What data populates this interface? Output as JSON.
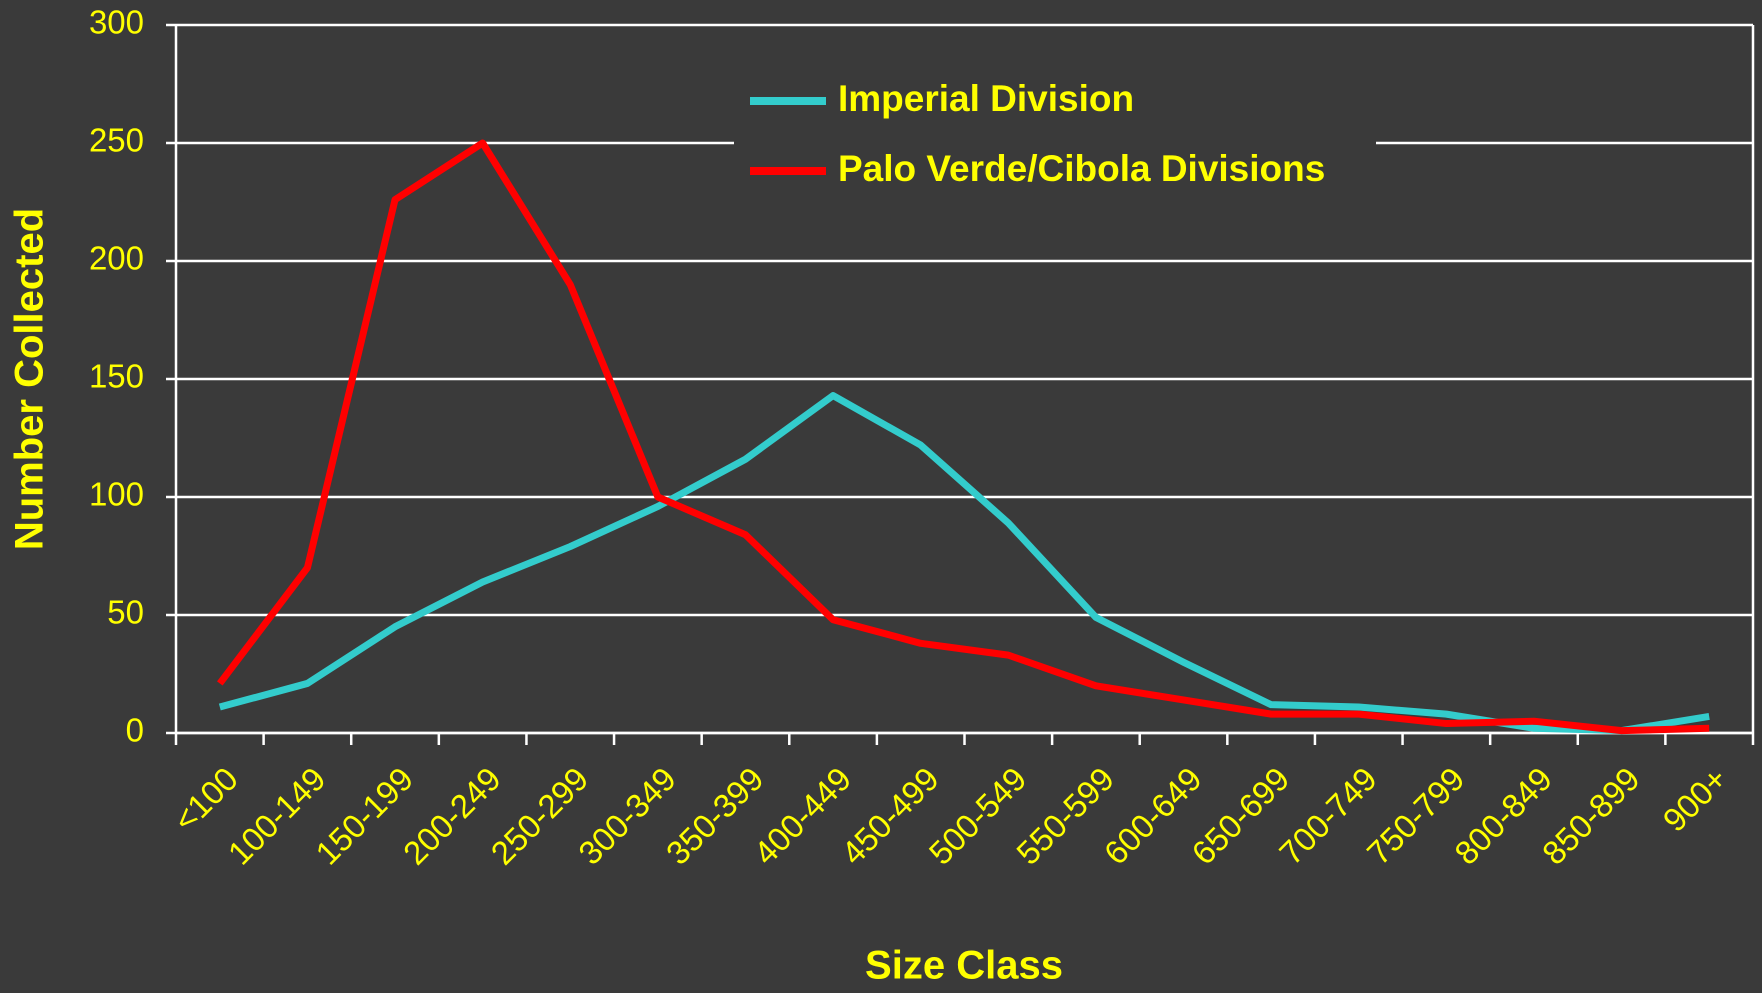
{
  "chart_data": {
    "type": "line",
    "x_label": "Size Class",
    "y_label": "Number Collected",
    "categories": [
      "<100",
      "100-149",
      "150-199",
      "200-249",
      "250-299",
      "300-349",
      "350-399",
      "400-449",
      "450-499",
      "500-549",
      "550-599",
      "600-649",
      "650-699",
      "700-749",
      "750-799",
      "800-849",
      "850-899",
      "900+"
    ],
    "series": [
      {
        "name": "Imperial Division",
        "color": "#33cccc",
        "values": [
          11,
          21,
          45,
          64,
          79,
          96,
          116,
          143,
          122,
          89,
          49,
          30,
          12,
          11,
          8,
          2,
          1,
          7
        ]
      },
      {
        "name": "Palo Verde/Cibola Divisions",
        "color": "#ff0000",
        "values": [
          21,
          70,
          226,
          250,
          190,
          100,
          84,
          48,
          38,
          33,
          20,
          14,
          8,
          8,
          4,
          5,
          1,
          2
        ]
      }
    ],
    "ylim": [
      0,
      300
    ],
    "yticks": [
      0,
      50,
      100,
      150,
      200,
      250,
      300
    ],
    "grid": true,
    "legend": "top"
  }
}
